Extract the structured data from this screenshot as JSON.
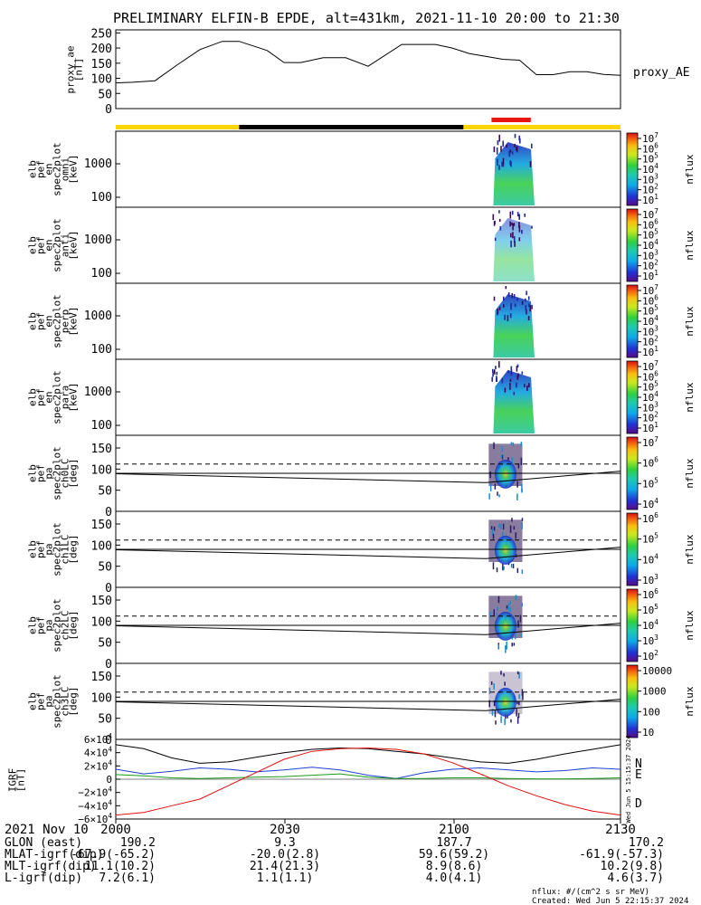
{
  "title": "PRELIMINARY ELFIN-B EPDE, alt=431km, 2021-11-10 20:00 to 21:30",
  "ae_panel": {
    "ylabel_lines": [
      "proxy_ae",
      "[nT]"
    ],
    "side_label": "proxy_AE",
    "yticks": [
      "250",
      "200",
      "150",
      "100",
      "50",
      "0"
    ],
    "ylim": [
      0,
      260
    ]
  },
  "flag_bar": {
    "colors": {
      "yellow": "#ffd400",
      "black": "#000000",
      "red": "#e8150f"
    }
  },
  "spec_panels": [
    {
      "ylabel_lines": [
        "elb",
        "pef",
        "en",
        "spec2plot",
        "omni",
        "[keV]"
      ],
      "yticks": [
        "1000",
        "100"
      ],
      "cb_label": "nflux",
      "cb_ticks": [
        "10^7",
        "10^6",
        "10^5",
        "10^4",
        "10^3",
        "10^2",
        "10^1"
      ]
    },
    {
      "ylabel_lines": [
        "elb",
        "pef",
        "en",
        "spec2plot",
        "anti",
        "[keV]"
      ],
      "yticks": [
        "1000",
        "100"
      ],
      "cb_label": "nflux",
      "cb_ticks": [
        "10^7",
        "10^6",
        "10^5",
        "10^4",
        "10^3",
        "10^2",
        "10^1"
      ]
    },
    {
      "ylabel_lines": [
        "elb",
        "pef",
        "en",
        "spec2plot",
        "perp",
        "[keV]"
      ],
      "yticks": [
        "1000",
        "100"
      ],
      "cb_label": "nflux",
      "cb_ticks": [
        "10^7",
        "10^6",
        "10^5",
        "10^4",
        "10^3",
        "10^2",
        "10^1"
      ]
    },
    {
      "ylabel_lines": [
        "elb",
        "pef",
        "en",
        "spec2plot",
        "para",
        "[keV]"
      ],
      "yticks": [
        "1000",
        "100"
      ],
      "cb_label": "nflux",
      "cb_ticks": [
        "10^7",
        "10^6",
        "10^5",
        "10^4",
        "10^3",
        "10^2",
        "10^1"
      ]
    }
  ],
  "pa_panels": [
    {
      "ylabel_lines": [
        "elb",
        "pef",
        "pa",
        "spec2plot",
        "ch0LC",
        "[deg]"
      ],
      "yticks": [
        "150",
        "100",
        "50",
        "0"
      ],
      "cb_label": "nflux",
      "cb_ticks": [
        "10^7",
        "10^6",
        "10^5",
        "10^4"
      ]
    },
    {
      "ylabel_lines": [
        "elb",
        "pef",
        "pa",
        "spec2plot",
        "ch1LC",
        "[deg]"
      ],
      "yticks": [
        "150",
        "100",
        "50",
        "0"
      ],
      "cb_label": "nflux",
      "cb_ticks": [
        "10^6",
        "10^5",
        "10^4",
        "10^3"
      ]
    },
    {
      "ylabel_lines": [
        "elb",
        "pef",
        "pa",
        "spec2plot",
        "ch2LC",
        "[deg]"
      ],
      "yticks": [
        "150",
        "100",
        "50",
        "0"
      ],
      "cb_label": "nflux",
      "cb_ticks": [
        "10^6",
        "10^5",
        "10^4",
        "10^3",
        "10^2"
      ]
    },
    {
      "ylabel_lines": [
        "elb",
        "pef",
        "pa",
        "spec2plot",
        "ch3LC",
        "[deg]"
      ],
      "yticks": [
        "150",
        "100",
        "50",
        "0"
      ],
      "cb_label": "nflux",
      "cb_ticks": [
        "10000",
        "1000",
        "100",
        "10"
      ]
    }
  ],
  "igrf_panel": {
    "ylabel_lines": [
      "IGRF",
      "[nT]"
    ],
    "yticks": [
      "6×10^4",
      "4×10^4",
      "2×10^4",
      "0",
      "−2×10^4",
      "−4×10^4",
      "−6×10^4"
    ],
    "legend": [
      {
        "label": "N",
        "color": "#1f3fd0"
      },
      {
        "label": "E",
        "color": "#1a9a1a"
      },
      {
        "label": "D",
        "color": "#e01010"
      }
    ],
    "stamp": "Wed Jun  5 15:15:37 2024"
  },
  "chart_data": [
    {
      "type": "line",
      "title": "PRELIMINARY ELFIN-B EPDE, alt=431km, 2021-11-10 20:00 to 21:30",
      "ylabel": "proxy_ae [nT]",
      "ylim": [
        0,
        260
      ],
      "x_minutes": [
        0,
        3,
        7,
        11,
        15,
        19,
        22,
        27,
        30,
        33,
        37,
        41,
        45,
        51,
        57,
        60,
        63,
        69,
        72,
        75,
        78,
        81,
        84,
        87,
        90
      ],
      "series": [
        {
          "name": "proxy_AE",
          "values": [
            85,
            87,
            92,
            145,
            195,
            222,
            222,
            192,
            152,
            152,
            168,
            168,
            140,
            212,
            212,
            200,
            182,
            163,
            160,
            112,
            112,
            122,
            122,
            113,
            110
          ]
        }
      ]
    },
    {
      "type": "line",
      "ylabel": "IGRF [nT]",
      "ylim": [
        -60000,
        60000
      ],
      "x_minutes": [
        0,
        5,
        10,
        15,
        20,
        25,
        30,
        35,
        40,
        45,
        50,
        55,
        60,
        65,
        70,
        75,
        80,
        85,
        90
      ],
      "series": [
        {
          "name": "N",
          "values": [
            15000,
            8000,
            12000,
            17000,
            15000,
            11000,
            14000,
            18000,
            14000,
            6000,
            1000,
            10000,
            15000,
            17000,
            14000,
            11000,
            13000,
            17000,
            15000
          ]
        },
        {
          "name": "E",
          "values": [
            7000,
            5000,
            2000,
            1000,
            2000,
            3000,
            4000,
            6000,
            8000,
            3000,
            1000,
            1000,
            2000,
            2000,
            1000,
            500,
            500,
            1000,
            2000
          ]
        },
        {
          "name": "D",
          "values": [
            -54000,
            -50000,
            -40000,
            -30000,
            -10000,
            10000,
            30000,
            42000,
            46000,
            47000,
            45000,
            38000,
            25000,
            8000,
            -10000,
            -25000,
            -38000,
            -48000,
            -54000
          ]
        }
      ]
    }
  ],
  "footer": {
    "time_row_label": "2021 Nov 10",
    "time_ticks": [
      "2000",
      "2030",
      "2100",
      "2130"
    ],
    "rows": [
      {
        "label": "GLON (east)",
        "values": [
          "190.2",
          "9.3",
          "187.7",
          "170.2"
        ]
      },
      {
        "label": "MLAT-igrf(dip)",
        "values": [
          "-67.9(-65.2)",
          "-20.0(2.8)",
          "59.6(59.2)",
          "-61.9(-57.3)"
        ]
      },
      {
        "label": "MLT-igrf(dip)",
        "values": [
          "11.1(10.2)",
          "21.4(21.3)",
          "8.9(8.6)",
          "10.2(9.8)"
        ]
      },
      {
        "label": "L-igrf(dip)",
        "values": [
          "7.2(6.1)",
          "1.1(1.1)",
          "4.0(4.1)",
          "4.6(3.7)"
        ]
      }
    ],
    "units_note": "nflux: #/(cm^2 s sr MeV)",
    "created": "Created: Wed Jun  5 22:15:37 2024"
  }
}
